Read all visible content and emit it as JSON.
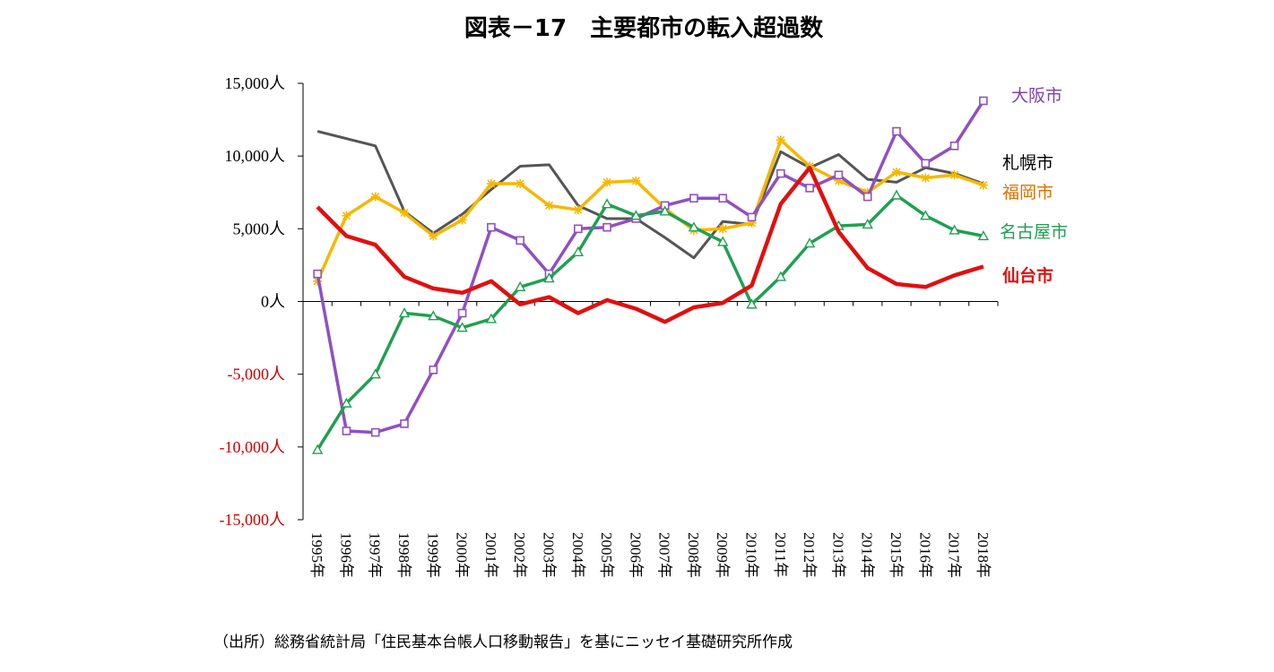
{
  "chart_data": {
    "type": "line",
    "title": "図表－17　主要都市の転入超過数",
    "source": "（出所）総務省統計局「住民基本台帳人口移動報告」を基にニッセイ基礎研究所作成",
    "x": [
      "1995年",
      "1996年",
      "1997年",
      "1998年",
      "1999年",
      "2000年",
      "2001年",
      "2002年",
      "2003年",
      "2004年",
      "2005年",
      "2006年",
      "2007年",
      "2008年",
      "2009年",
      "2010年",
      "2011年",
      "2012年",
      "2013年",
      "2014年",
      "2015年",
      "2016年",
      "2017年",
      "2018年"
    ],
    "ylim": [
      -15000,
      15000
    ],
    "yticks": [
      {
        "value": 15000,
        "label": "15,000人"
      },
      {
        "value": 10000,
        "label": "10,000人"
      },
      {
        "value": 5000,
        "label": "5,000人"
      },
      {
        "value": 0,
        "label": "0人"
      },
      {
        "value": -5000,
        "label": "-5,000人"
      },
      {
        "value": -10000,
        "label": "-10,000人"
      },
      {
        "value": -15000,
        "label": "-15,000人"
      }
    ],
    "negative_tick_color": "#cc0000",
    "positive_tick_color": "#000000",
    "grid": false,
    "series": [
      {
        "name": "札幌市",
        "color": "#555555",
        "marker": "none",
        "bold_label": false,
        "label_color": "#000000",
        "values": [
          11700,
          11200,
          10700,
          6200,
          4700,
          6000,
          7700,
          9300,
          9400,
          6600,
          5700,
          5700,
          4400,
          3000,
          5500,
          5300,
          10300,
          9200,
          10100,
          8400,
          8200,
          9200,
          8800,
          8100
        ]
      },
      {
        "name": "福岡市",
        "color": "#f5b800",
        "marker": "star",
        "bold_label": false,
        "label_color": "#e07000",
        "values": [
          1400,
          5900,
          7200,
          6100,
          4500,
          5600,
          8100,
          8100,
          6600,
          6300,
          8200,
          8300,
          6400,
          4900,
          5000,
          5400,
          11100,
          9300,
          8300,
          7500,
          8900,
          8500,
          8700,
          8000
        ]
      },
      {
        "name": "大阪市",
        "color": "#9050c0",
        "marker": "square",
        "bold_label": false,
        "label_color": "#8040b0",
        "values": [
          1900,
          -8900,
          -9000,
          -8400,
          -4700,
          -800,
          5100,
          4200,
          1900,
          5000,
          5100,
          5700,
          6600,
          7100,
          7100,
          5800,
          8800,
          7800,
          8700,
          7200,
          11700,
          9500,
          10700,
          13800
        ]
      },
      {
        "name": "名古屋市",
        "color": "#20a050",
        "marker": "triangle",
        "bold_label": false,
        "label_color": "#20a050",
        "values": [
          -10200,
          -7000,
          -5000,
          -800,
          -1000,
          -1800,
          -1200,
          1000,
          1600,
          3400,
          6700,
          5900,
          6200,
          5100,
          4100,
          -200,
          1700,
          4000,
          5200,
          5300,
          7300,
          5900,
          4900,
          4500
        ]
      },
      {
        "name": "仙台市",
        "color": "#e01010",
        "marker": "none",
        "bold_label": true,
        "label_color": "#e01010",
        "values": [
          6500,
          4500,
          3900,
          1700,
          900,
          600,
          1400,
          -200,
          300,
          -800,
          100,
          -500,
          -1400,
          -400,
          -100,
          1100,
          6700,
          9200,
          4800,
          2300,
          1200,
          1000,
          1800,
          2400
        ]
      }
    ]
  }
}
